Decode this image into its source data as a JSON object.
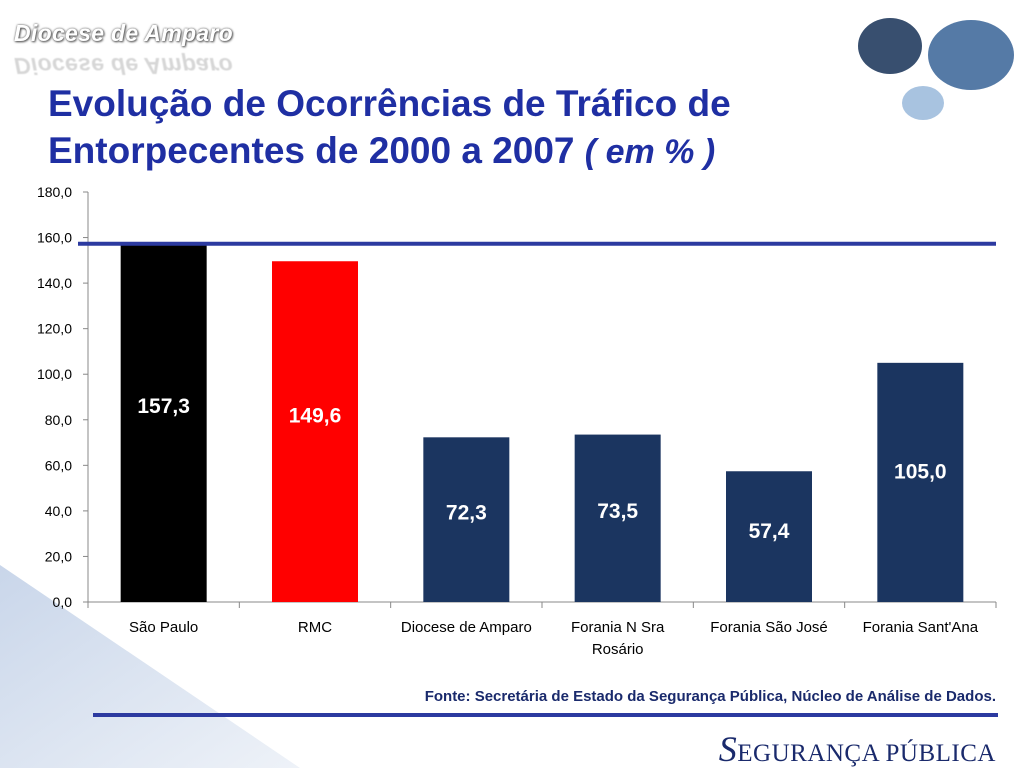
{
  "brand": {
    "name": "Diocese de Amparo"
  },
  "title": {
    "main": "Evolução de Ocorrências de Tráfico de Entorpecentes de 2000 a 2007",
    "unit": "( em % )"
  },
  "colors": {
    "title": "#1f2fa3",
    "sao_paulo": "#000000",
    "rmc": "#ff0000",
    "regional": "#1b3560",
    "reference_line": "#2c3aa0"
  },
  "chart_data": {
    "type": "bar",
    "categories": [
      "São Paulo",
      "RMC",
      "Diocese de Amparo",
      "Forania N Sra Rosário",
      "Forania São José",
      "Forania Sant'Ana"
    ],
    "values": [
      157.3,
      149.6,
      72.3,
      73.5,
      57.4,
      105.0
    ],
    "value_labels": [
      "157,3",
      "149,6",
      "72,3",
      "73,5",
      "57,4",
      "105,0"
    ],
    "ylim": [
      0,
      180
    ],
    "yticks": [
      "0,0",
      "20,0",
      "40,0",
      "60,0",
      "80,0",
      "100,0",
      "120,0",
      "140,0",
      "160,0",
      "180,0"
    ],
    "reference_line": 157.3,
    "grid": false,
    "legend": "none"
  },
  "source": "Fonte: Secretária de Estado da Segurança Pública, Núcleo de Análise de Dados.",
  "footer": {
    "first_letter": "S",
    "rest": "EGURANÇA PÚBLICA"
  }
}
